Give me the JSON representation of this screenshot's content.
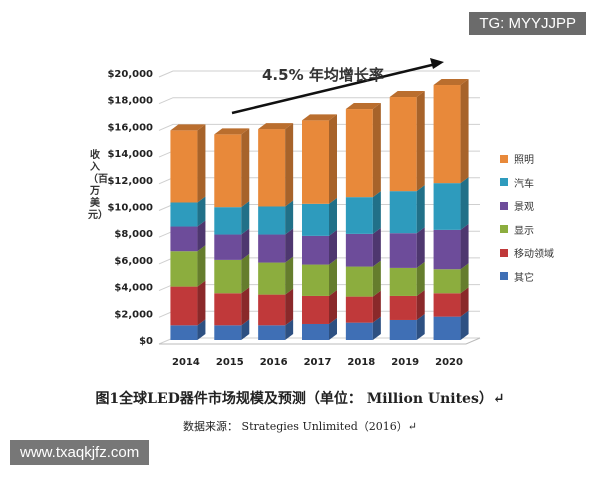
{
  "watermark_top": "TG: MYYJJPP",
  "watermark_bottom": "www.txaqkjfz.com",
  "caption": "图1全球LED器件市场规模及预测（单位： Million Unites）↵",
  "source": "数据来源： Strategies Unlimited（2016）↵",
  "chart_data": {
    "type": "bar",
    "stacked": true,
    "title": "",
    "annotation": "4.5% 年均增长率",
    "ylabel": "收入（百万美元）",
    "xlabel": "",
    "ylim": [
      0,
      20000
    ],
    "yticks": [
      "$0",
      "$2,000",
      "$4,000",
      "$6,000",
      "$8,000",
      "$10,000",
      "$12,000",
      "$14,000",
      "$16,000",
      "$18,000",
      "$20,000"
    ],
    "categories": [
      "2014",
      "2015",
      "2016",
      "2017",
      "2018",
      "2019",
      "2020"
    ],
    "legend_position": "right",
    "series": [
      {
        "name": "其它",
        "color": "#3f6fb5",
        "values": [
          1100,
          1100,
          1100,
          1200,
          1300,
          1500,
          1750
        ]
      },
      {
        "name": "移动领域",
        "color": "#c0393a",
        "values": [
          2900,
          2400,
          2300,
          2100,
          1950,
          1800,
          1750
        ]
      },
      {
        "name": "显示",
        "color": "#8cad3e",
        "values": [
          2650,
          2500,
          2400,
          2350,
          2250,
          2100,
          1800
        ]
      },
      {
        "name": "景观",
        "color": "#6d4c9a",
        "values": [
          1850,
          1900,
          2100,
          2150,
          2450,
          2600,
          2950
        ]
      },
      {
        "name": "汽车",
        "color": "#2e9bbd",
        "values": [
          1800,
          2050,
          2100,
          2400,
          2750,
          3150,
          3500
        ]
      },
      {
        "name": "照明",
        "color": "#e8893a",
        "values": [
          5400,
          5450,
          5800,
          6250,
          6600,
          7050,
          7350
        ]
      }
    ]
  }
}
